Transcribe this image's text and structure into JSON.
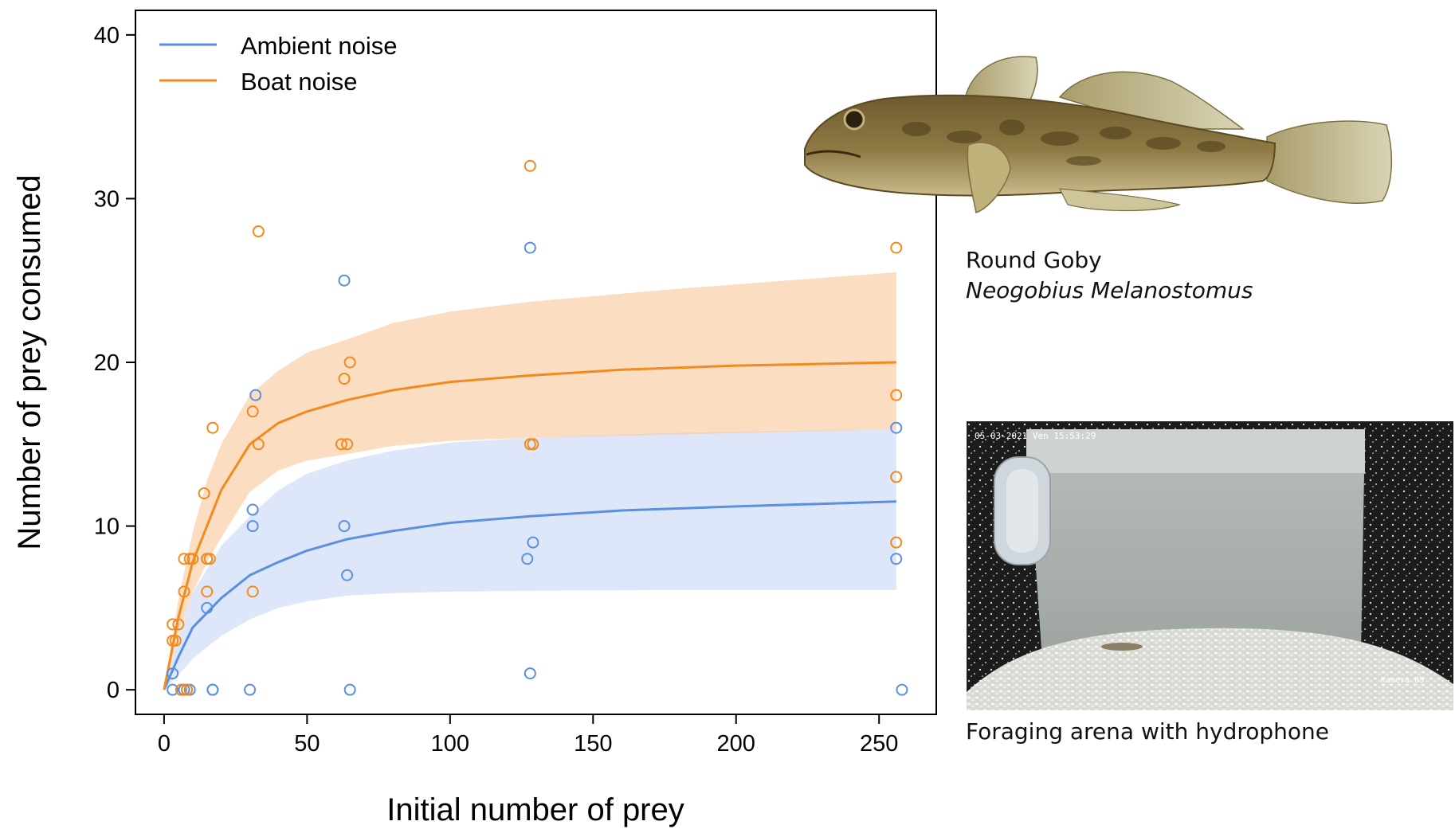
{
  "chart_data": {
    "type": "scatter",
    "xlabel": "Initial number of prey",
    "ylabel": "Number of prey consumed",
    "xlim": [
      -10,
      270
    ],
    "ylim": [
      -1.5,
      41.5
    ],
    "xticks": [
      0,
      50,
      100,
      150,
      200,
      250
    ],
    "yticks": [
      0,
      10,
      20,
      30,
      40
    ],
    "grid": false,
    "legend_position": "top-left",
    "series": [
      {
        "name": "Ambient noise",
        "color": "#5b8fe0",
        "points": [
          [
            3,
            1
          ],
          [
            3,
            0
          ],
          [
            6,
            0
          ],
          [
            7,
            0
          ],
          [
            8,
            0
          ],
          [
            9,
            0
          ],
          [
            15,
            5
          ],
          [
            15,
            8
          ],
          [
            17,
            0
          ],
          [
            17,
            0
          ],
          [
            30,
            0
          ],
          [
            31,
            11
          ],
          [
            31,
            10
          ],
          [
            32,
            18
          ],
          [
            63,
            25
          ],
          [
            63,
            10
          ],
          [
            64,
            7
          ],
          [
            65,
            0
          ],
          [
            127,
            8
          ],
          [
            128,
            27
          ],
          [
            128,
            1
          ],
          [
            129,
            9
          ],
          [
            256,
            16
          ],
          [
            256,
            8
          ],
          [
            258,
            0
          ]
        ],
        "fit": [
          [
            0,
            0
          ],
          [
            5,
            2
          ],
          [
            10,
            3.8
          ],
          [
            20,
            5.6
          ],
          [
            30,
            7.0
          ],
          [
            40,
            7.8
          ],
          [
            50,
            8.5
          ],
          [
            64,
            9.2
          ],
          [
            80,
            9.7
          ],
          [
            100,
            10.2
          ],
          [
            128,
            10.6
          ],
          [
            160,
            10.95
          ],
          [
            200,
            11.2
          ],
          [
            256,
            11.5
          ]
        ],
        "band_lower": [
          [
            0,
            0
          ],
          [
            5,
            0.9
          ],
          [
            10,
            1.9
          ],
          [
            20,
            3.3
          ],
          [
            30,
            4.3
          ],
          [
            40,
            5.0
          ],
          [
            50,
            5.4
          ],
          [
            64,
            5.75
          ],
          [
            80,
            5.9
          ],
          [
            100,
            6.0
          ],
          [
            128,
            6.05
          ],
          [
            180,
            6.1
          ],
          [
            256,
            6.1
          ]
        ],
        "band_upper": [
          [
            0,
            0
          ],
          [
            5,
            3.2
          ],
          [
            10,
            5.9
          ],
          [
            20,
            8.8
          ],
          [
            30,
            10.6
          ],
          [
            40,
            12.2
          ],
          [
            50,
            13.2
          ],
          [
            64,
            14.0
          ],
          [
            80,
            14.6
          ],
          [
            100,
            15.1
          ],
          [
            128,
            15.4
          ],
          [
            180,
            15.7
          ],
          [
            256,
            15.9
          ]
        ]
      },
      {
        "name": "Boat noise",
        "color": "#f28a1e",
        "points": [
          [
            3,
            4
          ],
          [
            3,
            3
          ],
          [
            4,
            3
          ],
          [
            5,
            4
          ],
          [
            6,
            0
          ],
          [
            7,
            6
          ],
          [
            7,
            8
          ],
          [
            8,
            0
          ],
          [
            9,
            8
          ],
          [
            10,
            8
          ],
          [
            14,
            12
          ],
          [
            15,
            6
          ],
          [
            15,
            8
          ],
          [
            16,
            8
          ],
          [
            17,
            16
          ],
          [
            31,
            17
          ],
          [
            31,
            6
          ],
          [
            33,
            15
          ],
          [
            33,
            28
          ],
          [
            62,
            15
          ],
          [
            63,
            19
          ],
          [
            64,
            15
          ],
          [
            65,
            20
          ],
          [
            128,
            32
          ],
          [
            128,
            15
          ],
          [
            129,
            15
          ],
          [
            256,
            27
          ],
          [
            256,
            18
          ],
          [
            256,
            13
          ],
          [
            256,
            9
          ]
        ],
        "fit": [
          [
            0,
            0
          ],
          [
            5,
            4.4
          ],
          [
            10,
            7.8
          ],
          [
            15,
            10.0
          ],
          [
            20,
            12.2
          ],
          [
            30,
            15.0
          ],
          [
            40,
            16.3
          ],
          [
            50,
            17.0
          ],
          [
            64,
            17.7
          ],
          [
            80,
            18.3
          ],
          [
            100,
            18.8
          ],
          [
            128,
            19.2
          ],
          [
            160,
            19.55
          ],
          [
            200,
            19.8
          ],
          [
            256,
            20.0
          ]
        ],
        "band_lower": [
          [
            0,
            0
          ],
          [
            5,
            3.3
          ],
          [
            10,
            5.9
          ],
          [
            15,
            7.8
          ],
          [
            20,
            9.3
          ],
          [
            30,
            12.1
          ],
          [
            40,
            13.4
          ],
          [
            50,
            14.0
          ],
          [
            64,
            14.4
          ],
          [
            80,
            14.9
          ],
          [
            100,
            15.2
          ],
          [
            128,
            15.4
          ],
          [
            180,
            15.6
          ],
          [
            256,
            15.9
          ]
        ],
        "band_upper": [
          [
            0,
            0
          ],
          [
            5,
            5.5
          ],
          [
            10,
            9.6
          ],
          [
            15,
            12.8
          ],
          [
            20,
            15.0
          ],
          [
            30,
            18.0
          ],
          [
            40,
            19.5
          ],
          [
            50,
            20.6
          ],
          [
            64,
            21.4
          ],
          [
            80,
            22.4
          ],
          [
            100,
            23.1
          ],
          [
            128,
            23.7
          ],
          [
            180,
            24.5
          ],
          [
            256,
            25.5
          ]
        ]
      }
    ]
  },
  "captions": {
    "goby_common": "Round Goby",
    "goby_scientific": "Neogobius Melanostomus",
    "arena": "Foraging arena with hydrophone"
  },
  "photo": {
    "timestamp": "05-03-2021 Ven 15:53:29",
    "camera": "Kamera 05"
  }
}
